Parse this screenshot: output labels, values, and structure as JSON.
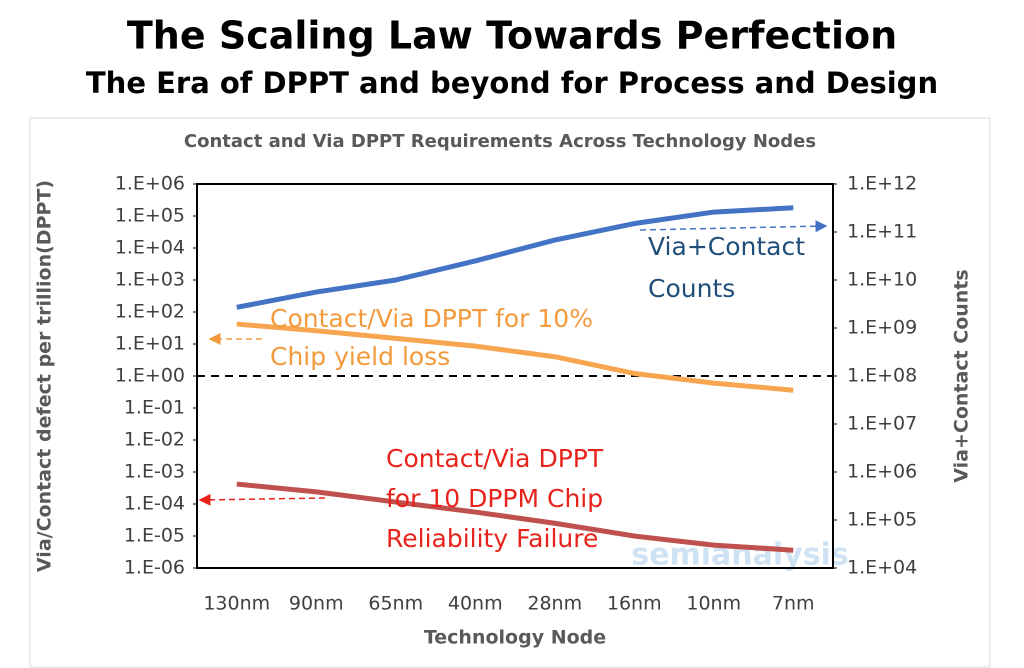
{
  "header": {
    "title": "The Scaling Law Towards Perfection",
    "subtitle": "The Era of DPPT and beyond for Process and Design"
  },
  "chart_data": {
    "type": "line",
    "title": "Contact and Via DPPT Requirements Across Technology Nodes",
    "x_label": "Technology Node",
    "y_label": "Via/Contact defect per trillion(DPPT)",
    "y2_label": "Via+Contact Counts",
    "categories": [
      "130nm",
      "90nm",
      "65nm",
      "40nm",
      "28nm",
      "16nm",
      "10nm",
      "7nm"
    ],
    "log": true,
    "y2log": true,
    "ylim": [
      1e-06,
      1000000
    ],
    "yticks": [
      {
        "value": 1000000,
        "label": "1.E+06"
      },
      {
        "value": 100000,
        "label": "1.E+05"
      },
      {
        "value": 10000,
        "label": "1.E+04"
      },
      {
        "value": 1000,
        "label": "1.E+03"
      },
      {
        "value": 100,
        "label": "1.E+02"
      },
      {
        "value": 10,
        "label": "1.E+01"
      },
      {
        "value": 1,
        "label": "1.E+00"
      },
      {
        "value": 0.1,
        "label": "1.E-01"
      },
      {
        "value": 0.01,
        "label": "1.E-02"
      },
      {
        "value": 0.001,
        "label": "1.E-03"
      },
      {
        "value": 0.0001,
        "label": "1.E-04"
      },
      {
        "value": 1e-05,
        "label": "1.E-05"
      },
      {
        "value": 1e-06,
        "label": "1.E-06"
      }
    ],
    "y2lim": [
      10000,
      1000000000000
    ],
    "y2ticks": [
      {
        "value": 1000000000000,
        "label": "1.E+12"
      },
      {
        "value": 100000000000,
        "label": "1.E+11"
      },
      {
        "value": 10000000000,
        "label": "1.E+10"
      },
      {
        "value": 1000000000,
        "label": "1.E+09"
      },
      {
        "value": 100000000,
        "label": "1.E+08"
      },
      {
        "value": 10000000,
        "label": "1.E+07"
      },
      {
        "value": 1000000,
        "label": "1.E+06"
      },
      {
        "value": 100000,
        "label": "1.E+05"
      },
      {
        "value": 10000,
        "label": "1.E+04"
      }
    ],
    "reference_line": {
      "value": 1,
      "color": "#000000"
    },
    "series": [
      {
        "name": "Via+Contact Counts",
        "color": "#4472c4",
        "axis": "y2",
        "values": [
          2700000000,
          5600000000,
          10000000000,
          25000000000,
          68000000000,
          150000000000,
          260000000000,
          320000000000
        ]
      },
      {
        "name": "Contact/Via DPPT for 10% Chip yield loss",
        "color": "#f8a54f",
        "axis": "y",
        "values": [
          42,
          26,
          15,
          8.6,
          4,
          1.2,
          0.6,
          0.36
        ]
      },
      {
        "name": "Contact/Via DPPT for 10 DPPM Chip Reliability Failure",
        "color": "#c0504d",
        "axis": "y",
        "values": [
          0.00042,
          0.00024,
          0.000115,
          5.6e-05,
          2.5e-05,
          1e-05,
          5.2e-06,
          3.6e-06
        ]
      }
    ],
    "annotations": [
      {
        "lines": [
          "Via+Contact",
          "Counts"
        ],
        "color": "#1f4e79"
      },
      {
        "lines": [
          "Contact/Via DPPT for 10%",
          "Chip yield loss"
        ],
        "color": "#f39a3c"
      },
      {
        "lines": [
          "Contact/Via DPPT",
          "for 10 DPPM Chip",
          "Reliability Failure"
        ],
        "color": "#e8231b"
      }
    ],
    "watermark": "semianalysis"
  }
}
